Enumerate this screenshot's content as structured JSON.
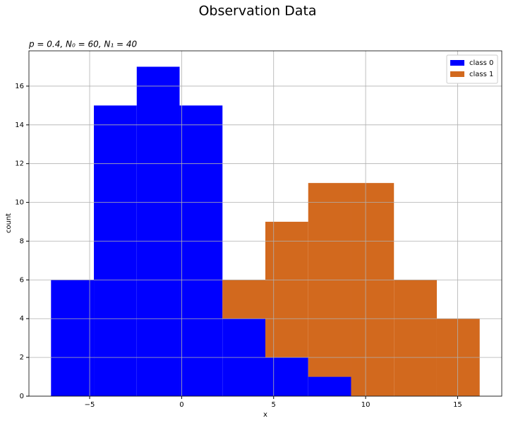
{
  "chart_data": {
    "type": "histogram",
    "title": "Observation Data",
    "subtitle": "p = 0.4, N₀ = 60, N₁ = 40",
    "x_label": "x",
    "y_label": "count",
    "bins": [
      -7.1,
      -4.77,
      -2.44,
      -0.11,
      2.22,
      4.55,
      6.88,
      9.21,
      11.54,
      13.87,
      16.2
    ],
    "stacked": true,
    "series": [
      {
        "name": "class 0",
        "color": "#0000ff",
        "values": [
          6,
          15,
          17,
          15,
          4,
          2,
          1,
          0,
          0,
          0
        ]
      },
      {
        "name": "class 1",
        "color": "#d2691e",
        "values": [
          0,
          0,
          0,
          0,
          2,
          7,
          10,
          11,
          6,
          4
        ]
      }
    ],
    "xlim": [
      -8.3,
      17.4
    ],
    "ylim": [
      0,
      17.82
    ],
    "xticks": [
      {
        "value": -5,
        "label": "−5"
      },
      0,
      5,
      10,
      15
    ],
    "yticks": [
      0,
      2,
      4,
      6,
      8,
      10,
      12,
      14,
      16
    ],
    "grid": true,
    "legend": "upper right"
  }
}
